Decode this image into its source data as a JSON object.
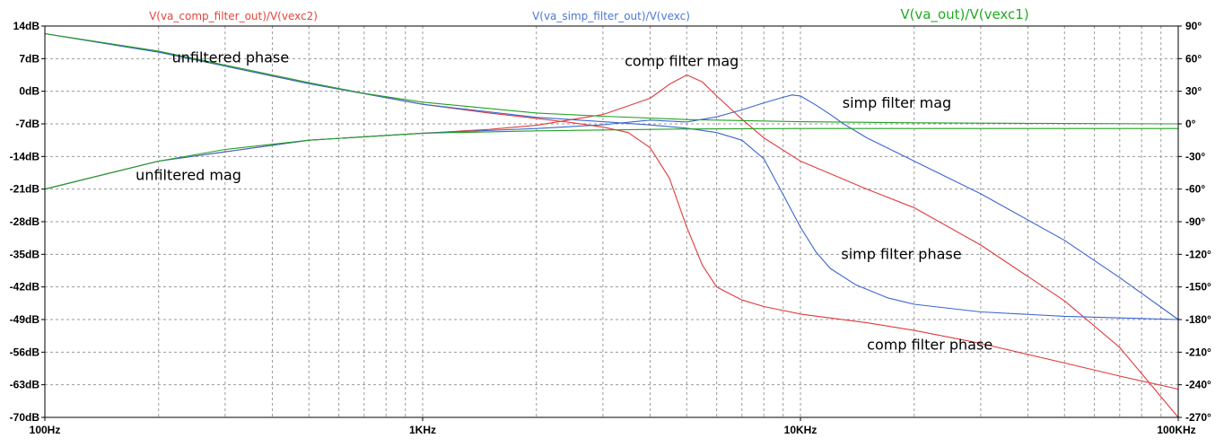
{
  "chart_data": {
    "type": "line",
    "x_scale": "log",
    "grid": true,
    "headers": [
      {
        "text": "V(va_comp_filter_out)/V(vexc2)",
        "color": "#e8443c"
      },
      {
        "text": "V(va_simp_filter_out)/V(vexc)",
        "color": "#4a78d8"
      },
      {
        "text": "V(va_out)/V(vexc1)",
        "color": "#22aa22"
      }
    ],
    "x_ticks": [
      {
        "value": 100,
        "label": "100Hz"
      },
      {
        "value": 1000,
        "label": "1KHz"
      },
      {
        "value": 10000,
        "label": "10KHz"
      },
      {
        "value": 100000,
        "label": "100KHz"
      }
    ],
    "xlim": [
      100,
      100000
    ],
    "y_left": {
      "unit": "dB",
      "ylim": [
        -70,
        14
      ],
      "ticks": [
        {
          "value": 14,
          "label": "14dB"
        },
        {
          "value": 7,
          "label": "7dB"
        },
        {
          "value": 0,
          "label": "0dB"
        },
        {
          "value": -7,
          "label": "-7dB"
        },
        {
          "value": -14,
          "label": "-14dB"
        },
        {
          "value": -21,
          "label": "-21dB"
        },
        {
          "value": -28,
          "label": "-28dB"
        },
        {
          "value": -35,
          "label": "-35dB"
        },
        {
          "value": -42,
          "label": "-42dB"
        },
        {
          "value": -49,
          "label": "-49dB"
        },
        {
          "value": -56,
          "label": "-56dB"
        },
        {
          "value": -63,
          "label": "-63dB"
        },
        {
          "value": -70,
          "label": "-70dB"
        }
      ]
    },
    "y_right": {
      "unit": "°",
      "ylim": [
        -270,
        90
      ],
      "ticks": [
        {
          "value": 90,
          "label": "90°"
        },
        {
          "value": 60,
          "label": "60°"
        },
        {
          "value": 30,
          "label": "30°"
        },
        {
          "value": 0,
          "label": "0°"
        },
        {
          "value": -30,
          "label": "-30°"
        },
        {
          "value": -60,
          "label": "-60°"
        },
        {
          "value": -90,
          "label": "-90°"
        },
        {
          "value": -120,
          "label": "-120°"
        },
        {
          "value": -150,
          "label": "-150°"
        },
        {
          "value": -180,
          "label": "-180°"
        },
        {
          "value": -210,
          "label": "-210°"
        },
        {
          "value": -240,
          "label": "-240°"
        },
        {
          "value": -270,
          "label": "-270°"
        }
      ]
    },
    "series": [
      {
        "key": "comp_mag",
        "axis": "left",
        "color": "#e03a3a",
        "points": [
          [
            100,
            -21
          ],
          [
            200,
            -15
          ],
          [
            500,
            -10.5
          ],
          [
            1000,
            -9
          ],
          [
            1500,
            -8.2
          ],
          [
            2000,
            -7.3
          ],
          [
            3000,
            -5
          ],
          [
            4000,
            -1.5
          ],
          [
            4500,
            1.5
          ],
          [
            5000,
            3.5
          ],
          [
            5500,
            2
          ],
          [
            6000,
            -1
          ],
          [
            7000,
            -6
          ],
          [
            8000,
            -10
          ],
          [
            10000,
            -15
          ],
          [
            15000,
            -21
          ],
          [
            20000,
            -25
          ],
          [
            30000,
            -33
          ],
          [
            50000,
            -45
          ],
          [
            70000,
            -55
          ],
          [
            100000,
            -70
          ]
        ]
      },
      {
        "key": "comp_phase",
        "axis": "right",
        "color": "#e03a3a",
        "points": [
          [
            100,
            83
          ],
          [
            200,
            66
          ],
          [
            500,
            37
          ],
          [
            1000,
            18
          ],
          [
            1500,
            10
          ],
          [
            2000,
            5
          ],
          [
            2500,
            1
          ],
          [
            3000,
            -3
          ],
          [
            3500,
            -8
          ],
          [
            4000,
            -22
          ],
          [
            4500,
            -50
          ],
          [
            5000,
            -95
          ],
          [
            5500,
            -130
          ],
          [
            6000,
            -150
          ],
          [
            7000,
            -162
          ],
          [
            8000,
            -168
          ],
          [
            10000,
            -175
          ],
          [
            15000,
            -183
          ],
          [
            20000,
            -190
          ],
          [
            30000,
            -202
          ],
          [
            50000,
            -220
          ],
          [
            70000,
            -232
          ],
          [
            100000,
            -244
          ]
        ]
      },
      {
        "key": "simp_mag",
        "axis": "left",
        "color": "#3a66d0",
        "points": [
          [
            100,
            -21
          ],
          [
            200,
            -15
          ],
          [
            500,
            -10.5
          ],
          [
            1000,
            -9
          ],
          [
            2000,
            -8
          ],
          [
            3000,
            -7.2
          ],
          [
            4000,
            -6.2
          ],
          [
            5000,
            -6.6
          ],
          [
            6000,
            -5.5
          ],
          [
            7000,
            -4
          ],
          [
            8000,
            -2.5
          ],
          [
            9000,
            -1.3
          ],
          [
            9500,
            -0.8
          ],
          [
            10000,
            -1
          ],
          [
            11000,
            -3
          ],
          [
            12000,
            -5
          ],
          [
            13000,
            -7
          ],
          [
            15000,
            -10
          ],
          [
            20000,
            -15
          ],
          [
            30000,
            -22
          ],
          [
            50000,
            -32
          ],
          [
            70000,
            -40
          ],
          [
            100000,
            -49
          ]
        ]
      },
      {
        "key": "simp_phase",
        "axis": "right",
        "color": "#3a66d0",
        "points": [
          [
            100,
            83
          ],
          [
            200,
            66
          ],
          [
            500,
            37
          ],
          [
            1000,
            18
          ],
          [
            2000,
            6
          ],
          [
            3000,
            2
          ],
          [
            4000,
            -1
          ],
          [
            5000,
            -4
          ],
          [
            6000,
            -8
          ],
          [
            7000,
            -15
          ],
          [
            8000,
            -32
          ],
          [
            9000,
            -65
          ],
          [
            10000,
            -95
          ],
          [
            11000,
            -118
          ],
          [
            12000,
            -133
          ],
          [
            14000,
            -148
          ],
          [
            17000,
            -160
          ],
          [
            20000,
            -166
          ],
          [
            30000,
            -173
          ],
          [
            50000,
            -177
          ],
          [
            100000,
            -180
          ]
        ]
      },
      {
        "key": "unf_mag",
        "axis": "left",
        "color": "#22a022",
        "points": [
          [
            100,
            -21
          ],
          [
            200,
            -15
          ],
          [
            300,
            -12.5
          ],
          [
            500,
            -10.5
          ],
          [
            1000,
            -9
          ],
          [
            2000,
            -8.5
          ],
          [
            5000,
            -8.1
          ],
          [
            10000,
            -8
          ],
          [
            100000,
            -8
          ]
        ]
      },
      {
        "key": "unf_phase",
        "axis": "right",
        "color": "#22a022",
        "points": [
          [
            100,
            83
          ],
          [
            200,
            67
          ],
          [
            300,
            54
          ],
          [
            500,
            38
          ],
          [
            700,
            28
          ],
          [
            1000,
            20
          ],
          [
            2000,
            10
          ],
          [
            3000,
            7
          ],
          [
            5000,
            4
          ],
          [
            10000,
            2
          ],
          [
            20000,
            1
          ],
          [
            50000,
            0.3
          ],
          [
            100000,
            0
          ]
        ]
      }
    ],
    "annotations": [
      {
        "text": "unfiltered phase",
        "anchor": [
          310,
          6.2
        ]
      },
      {
        "text": "unfiltered mag",
        "anchor": [
          240,
          -19
        ]
      },
      {
        "text": "comp filter mag",
        "anchor": [
          4850,
          5.4
        ]
      },
      {
        "text": "simp filter mag",
        "anchor": [
          18000,
          -3.5
        ]
      },
      {
        "text": "simp filter phase",
        "anchor": [
          18500,
          -36
        ]
      },
      {
        "text": "comp filter phase",
        "anchor": [
          22000,
          -55.5
        ]
      }
    ]
  }
}
